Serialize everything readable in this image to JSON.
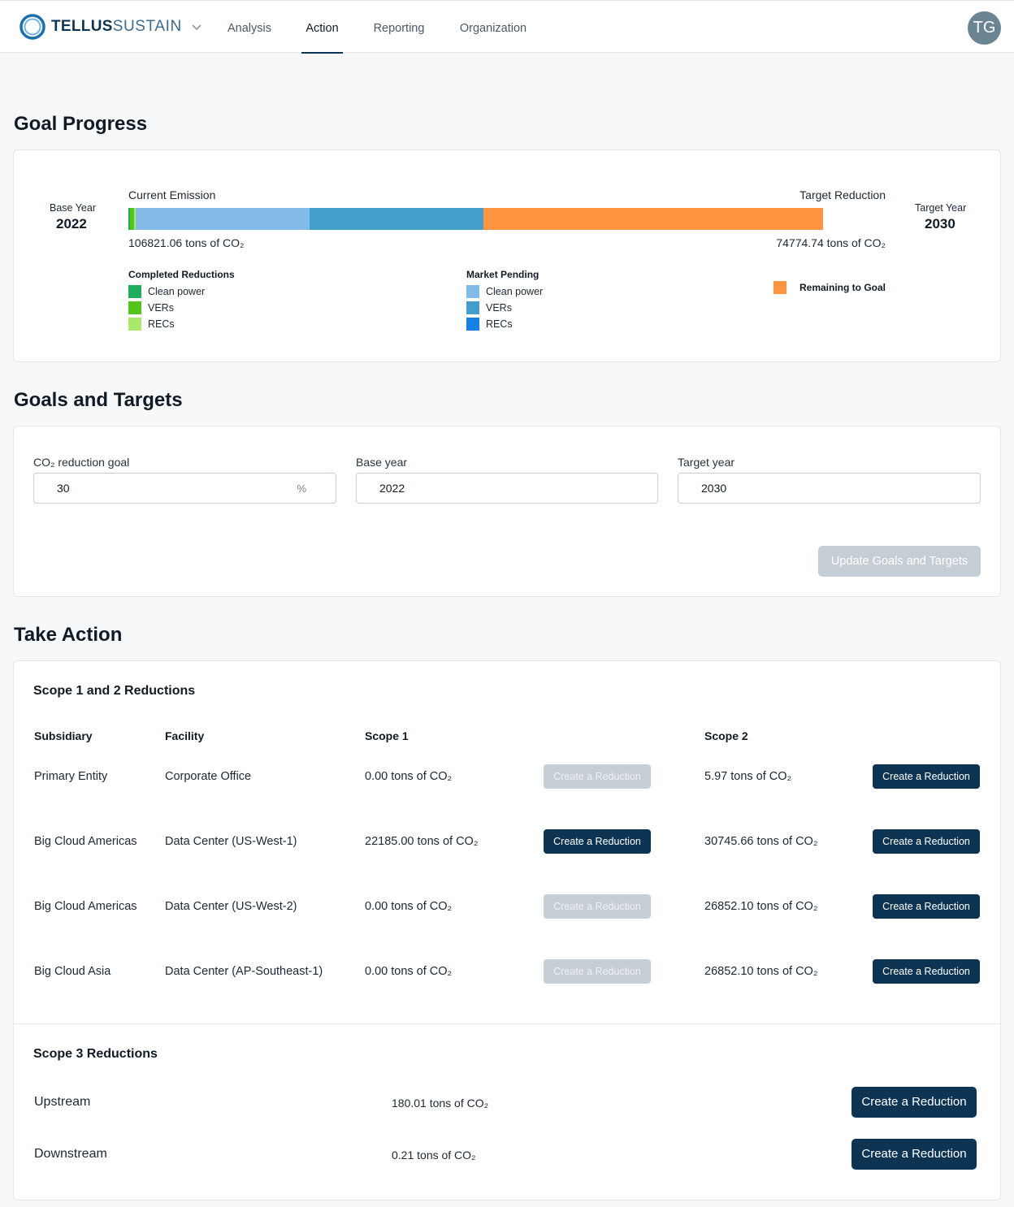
{
  "header": {
    "logo_bold": "TELLUS",
    "logo_light": "SUSTAIN",
    "tabs": [
      {
        "label": "Analysis",
        "active": false
      },
      {
        "label": "Action",
        "active": true
      },
      {
        "label": "Reporting",
        "active": false
      },
      {
        "label": "Organization",
        "active": false
      }
    ],
    "avatar_initials": "TG",
    "brand_color": "#0d3553"
  },
  "goal_progress": {
    "title": "Goal Progress",
    "base_year_label": "Base Year",
    "base_year": "2022",
    "target_year_label": "Target Year",
    "target_year": "2030",
    "current_emission_label": "Current Emission",
    "target_reduction_label": "Target Reduction",
    "current_emission_value": "106821.06 tons of CO₂",
    "target_reduction_value": "74774.74 tons of CO₂",
    "bar_segments_fraction_of_track": [
      {
        "category": "Completed Reductions",
        "name": "Clean power",
        "fraction": 0.002,
        "color": "#1fae5b"
      },
      {
        "category": "Completed Reductions",
        "name": "VERs",
        "fraction": 0.005,
        "color": "#52c41a"
      },
      {
        "category": "Completed Reductions",
        "name": "RECs",
        "fraction": 0.002,
        "color": "#a9e86b"
      },
      {
        "category": "Market Pending",
        "name": "Clean power",
        "fraction": 0.229,
        "color": "#82bbe8"
      },
      {
        "category": "Market Pending",
        "name": "VERs",
        "fraction": 0.229,
        "color": "#439ecb"
      },
      {
        "category": "Remaining to Goal",
        "name": "Remaining to Goal",
        "fraction": 0.448,
        "color": "#ff9440"
      }
    ],
    "legend": {
      "completed": {
        "title": "Completed Reductions",
        "items": [
          {
            "label": "Clean power",
            "color": "#1fae5b"
          },
          {
            "label": "VERs",
            "color": "#52c41a"
          },
          {
            "label": "RECs",
            "color": "#a9e86b"
          }
        ]
      },
      "pending": {
        "title": "Market Pending",
        "items": [
          {
            "label": "Clean power",
            "color": "#82bbe8"
          },
          {
            "label": "VERs",
            "color": "#439ecb"
          },
          {
            "label": "RECs",
            "color": "#1581e5"
          }
        ]
      },
      "remaining": {
        "label": "Remaining to Goal",
        "color": "#ff9440"
      }
    }
  },
  "goals_targets": {
    "title": "Goals and Targets",
    "reduction_goal_label": "CO₂ reduction goal",
    "reduction_goal_value": "30",
    "reduction_goal_suffix": "%",
    "base_year_label": "Base year",
    "base_year_value": "2022",
    "target_year_label": "Target year",
    "target_year_value": "2030",
    "update_button": "Update Goals and Targets"
  },
  "take_action": {
    "title": "Take Action",
    "scope12_title": "Scope 1 and 2 Reductions",
    "columns": {
      "subsidiary": "Subsidiary",
      "facility": "Facility",
      "scope1": "Scope 1",
      "scope2": "Scope 2"
    },
    "create_label": "Create a Reduction",
    "rows": [
      {
        "subsidiary": "Primary Entity",
        "facility": "Corporate Office",
        "scope1": "0.00 tons of CO₂",
        "scope1_enabled": false,
        "scope2": "5.97 tons of CO₂",
        "scope2_enabled": true
      },
      {
        "subsidiary": "Big Cloud Americas",
        "facility": "Data Center (US-West-1)",
        "scope1": "22185.00 tons of CO₂",
        "scope1_enabled": true,
        "scope2": "30745.66 tons of CO₂",
        "scope2_enabled": true
      },
      {
        "subsidiary": "Big Cloud Americas",
        "facility": "Data Center (US-West-2)",
        "scope1": "0.00 tons of CO₂",
        "scope1_enabled": false,
        "scope2": "26852.10 tons of CO₂",
        "scope2_enabled": true
      },
      {
        "subsidiary": "Big Cloud Asia",
        "facility": "Data Center (AP-Southeast-1)",
        "scope1": "0.00 tons of CO₂",
        "scope1_enabled": false,
        "scope2": "26852.10 tons of CO₂",
        "scope2_enabled": true
      }
    ],
    "scope3_title": "Scope 3 Reductions",
    "scope3_rows": [
      {
        "name": "Upstream",
        "value": "180.01 tons of CO₂"
      },
      {
        "name": "Downstream",
        "value": "0.21 tons of CO₂"
      }
    ]
  }
}
